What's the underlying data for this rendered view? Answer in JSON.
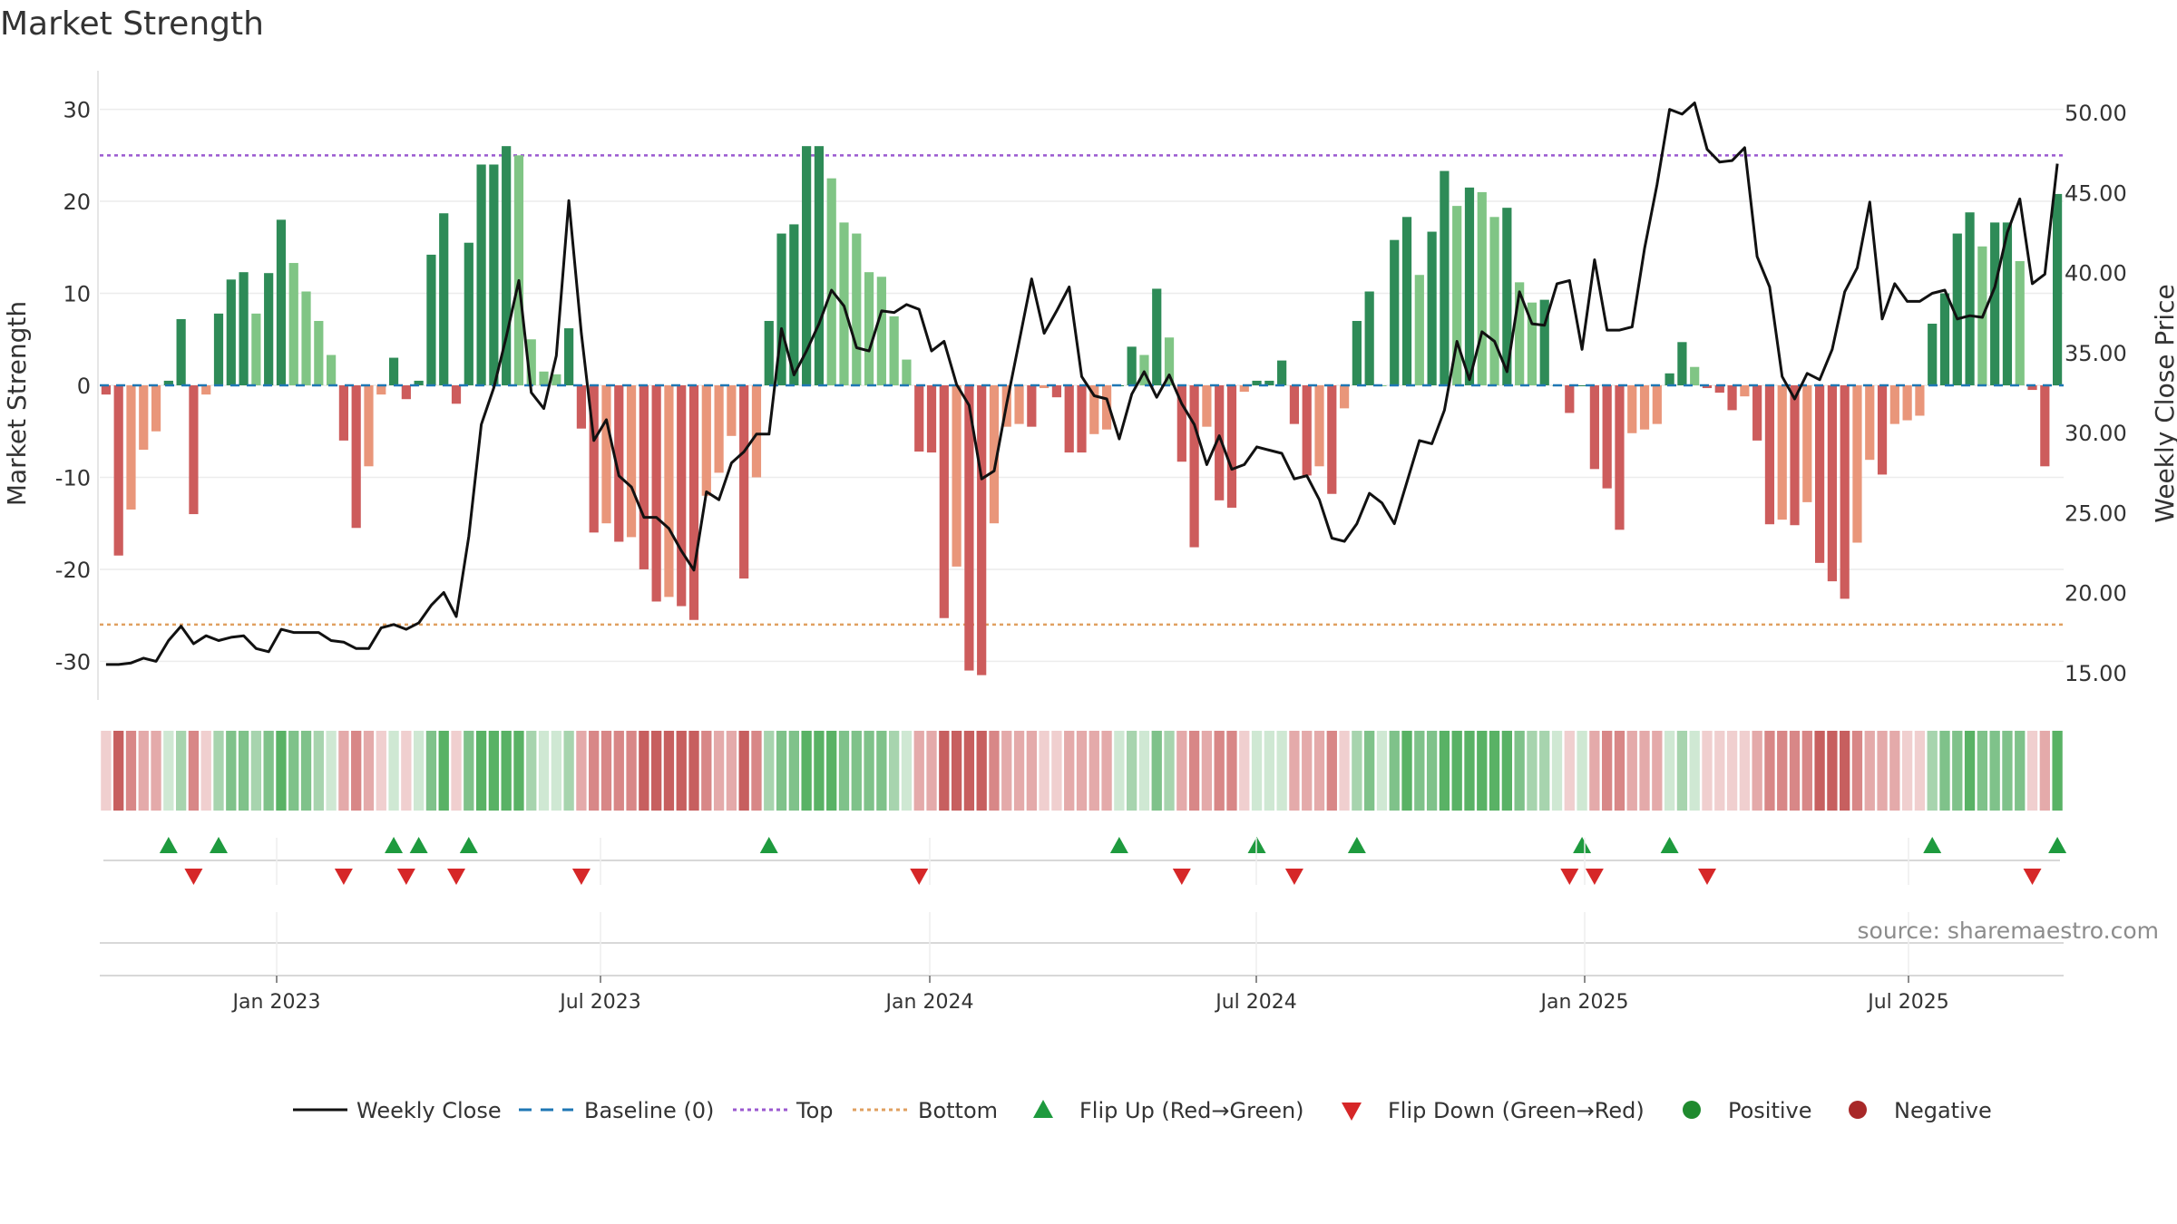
{
  "title": "Market Strength",
  "watermark": "source: sharemaestro.com",
  "chart_data": {
    "type": "bar",
    "title": "Market Strength",
    "ylabel": "Market Strength",
    "y2label": "Weekly Close Price",
    "ylim": [
      -34,
      34
    ],
    "y2lim": [
      13.4,
      52.5
    ],
    "yticks": [
      30,
      20,
      10,
      0,
      -10,
      -20,
      -30
    ],
    "y2ticks": [
      "50.00",
      "45.00",
      "40.00",
      "35.00",
      "30.00",
      "25.00",
      "20.00",
      "15.00"
    ],
    "xticks": [
      "Jan 2023",
      "Jul 2023",
      "Jan 2024",
      "Jul 2024",
      "Jan 2025",
      "Jul 2025"
    ],
    "top_level": 25,
    "bottom_level": -26,
    "series": [
      {
        "name": "Market Strength",
        "values": [
          -1,
          -18.5,
          -13.5,
          -7,
          -5,
          0.5,
          7.2,
          -14,
          -1,
          7.8,
          11.5,
          12.3,
          7.8,
          12.2,
          18,
          13.3,
          10.2,
          7,
          3.3,
          -6,
          -15.5,
          -8.8,
          -1,
          3,
          -1.5,
          0.5,
          14.2,
          18.7,
          -2,
          15.5,
          24,
          24,
          26,
          25,
          5,
          1.5,
          1.2,
          6.2,
          -4.7,
          -16,
          -15,
          -17,
          -16.5,
          -20,
          -23.5,
          -23,
          -24,
          -25.5,
          -12,
          -9.5,
          -5.5,
          -21,
          -10,
          7,
          16.5,
          17.5,
          26,
          26,
          22.5,
          17.7,
          16.5,
          12.3,
          11.8,
          7.5,
          2.8,
          -7.2,
          -7.3,
          -25.3,
          -19.7,
          -31,
          -31.5,
          -15,
          -4.5,
          -4.2,
          -4.5,
          -0.3,
          -1.3,
          -7.3,
          -7.3,
          -5.3,
          -4.8,
          0,
          4.2,
          3.3,
          10.5,
          5.2,
          -8.3,
          -17.6,
          -4.5,
          -12.5,
          -13.3,
          -0.7,
          0.5,
          0.5,
          2.7,
          -4.2,
          -9.8,
          -8.8,
          -11.8,
          -2.5,
          7,
          10.2,
          0,
          15.8,
          18.3,
          12,
          16.7,
          23.3,
          19.5,
          21.5,
          21,
          18.3,
          19.3,
          11.2,
          9,
          9.3,
          0,
          -3,
          0,
          -9.1,
          -11.2,
          -15.7,
          -5.2,
          -4.8,
          -4.2,
          1.3,
          4.7,
          2,
          -0.3,
          -0.8,
          -2.7,
          -1.2,
          -6,
          -15.1,
          -14.6,
          -15.2,
          -12.7,
          -19.3,
          -21.3,
          -23.2,
          -17.1,
          -8.1,
          -9.7,
          -4.2,
          -3.8,
          -3.3,
          6.7,
          10,
          16.5,
          18.8,
          15.1,
          17.7,
          17.7,
          13.5,
          -0.5,
          -8.8,
          20.8
        ]
      },
      {
        "name": "Weekly Close",
        "values": [
          15.5,
          15.5,
          15.6,
          15.9,
          15.7,
          17,
          17.9,
          16.8,
          17.3,
          17,
          17.2,
          17.3,
          16.5,
          16.3,
          17.7,
          17.5,
          17.5,
          17.5,
          17,
          16.9,
          16.5,
          16.5,
          17.8,
          18,
          17.7,
          18.1,
          19.2,
          20,
          18.5,
          23.5,
          30.5,
          32.8,
          36,
          39.5,
          32.5,
          31.5,
          34.8,
          44.5,
          36.2,
          29.5,
          30.8,
          27.3,
          26.6,
          24.7,
          24.7,
          24,
          22.6,
          21.4,
          26.3,
          25.8,
          28.1,
          28.8,
          29.9,
          29.9,
          36.5,
          33.6,
          35.1,
          36.8,
          38.9,
          37.9,
          35.3,
          35.1,
          37.6,
          37.5,
          38,
          37.7,
          35.1,
          35.7,
          33,
          31.7,
          27.1,
          27.6,
          31.8,
          35.7,
          39.6,
          36.2,
          37.6,
          39.1,
          33.5,
          32.3,
          32.1,
          29.6,
          32.4,
          33.8,
          32.2,
          33.6,
          31.8,
          30.5,
          28,
          29.8,
          27.7,
          28,
          29.1,
          28.9,
          28.7,
          27.1,
          27.3,
          25.8,
          23.4,
          23.2,
          24.3,
          26.2,
          25.6,
          24.3,
          26.9,
          29.5,
          29.3,
          31.4,
          35.7,
          33.3,
          36.3,
          35.7,
          33.8,
          38.8,
          36.8,
          36.7,
          39.3,
          39.5,
          35.2,
          40.8,
          36.4,
          36.4,
          36.6,
          41.5,
          45.5,
          50.2,
          49.9,
          50.6,
          47.7,
          46.9,
          47,
          47.8,
          41,
          39.1,
          33.5,
          32.1,
          33.7,
          33.3,
          35.2,
          38.8,
          40.3,
          44.4,
          37.1,
          39.3,
          38.2,
          38.2,
          38.7,
          38.9,
          37.1,
          37.3,
          37.2,
          39.1,
          42.5,
          44.6,
          39.3,
          39.9,
          46.8
        ]
      }
    ],
    "band_palette": {
      "green": [
        "#cfe8d3",
        "#a7d4ae",
        "#7fc28a",
        "#59b265"
      ],
      "red": [
        "#f0cfcf",
        "#e4aaaa",
        "#d88787",
        "#c75f5f"
      ]
    },
    "colors": {
      "dark_green": "#2e8b57",
      "light_green": "#80c585",
      "dark_red": "#cd5c5c",
      "light_red": "#e9967a",
      "line": "#111111",
      "baseline": "#1f77b4",
      "top": "#9b59d0",
      "bottom": "#e0a060",
      "flip_up": "#1e9a3e",
      "flip_down": "#d62728",
      "positive": "#1f8a2e",
      "negative": "#a82828"
    },
    "legend": [
      "Weekly Close",
      "Baseline (0)",
      "Top",
      "Bottom",
      "Flip Up (Red→Green)",
      "Flip Down (Green→Red)",
      "Positive",
      "Negative"
    ]
  }
}
